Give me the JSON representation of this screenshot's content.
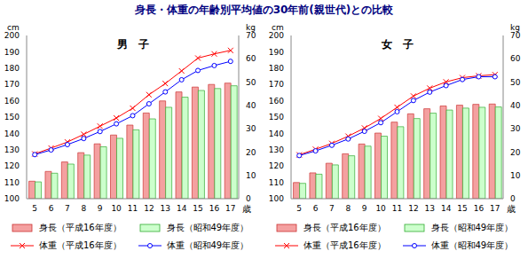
{
  "title": "身長・体重の年齢別平均値の30年前(親世代)との比較",
  "chart_data": [
    {
      "type": "bar",
      "title": "男　子",
      "categories": [
        "5",
        "6",
        "7",
        "8",
        "9",
        "10",
        "11",
        "12",
        "13",
        "14",
        "15",
        "16",
        "17"
      ],
      "xlabel": "歳",
      "ylabel": "cm",
      "y2label": "kg",
      "ylim": [
        100,
        200
      ],
      "yticks": [
        100,
        110,
        120,
        130,
        140,
        150,
        160,
        170,
        180,
        190,
        200
      ],
      "y2lim": [
        0,
        70
      ],
      "y2ticks": [
        0,
        10,
        20,
        30,
        40,
        50,
        60,
        70
      ],
      "grid": false,
      "series": [
        {
          "name": "身長（平成16年度）",
          "type": "bar",
          "color": "#f4a0a0",
          "values": [
            110.7,
            116.7,
            122.5,
            128.2,
            133.6,
            139.0,
            145.1,
            152.5,
            159.9,
            165.4,
            168.4,
            170.0,
            170.8
          ]
        },
        {
          "name": "身長（昭和49年度）",
          "type": "bar",
          "color": "#ccffcc",
          "values": [
            110.3,
            115.6,
            121.2,
            126.7,
            131.8,
            137.0,
            142.2,
            148.9,
            156.0,
            162.2,
            166.3,
            167.5,
            169.2
          ]
        },
        {
          "name": "体重（平成16年度）",
          "type": "line",
          "axis": "y2",
          "color": "#ff0000",
          "marker": "x",
          "values": [
            19.2,
            21.7,
            24.3,
            27.6,
            31.1,
            34.6,
            38.8,
            44.6,
            49.4,
            54.8,
            60.3,
            62.1,
            63.6
          ]
        },
        {
          "name": "体重（昭和49年度）",
          "type": "line",
          "axis": "y2",
          "color": "#0000ff",
          "marker": "circle",
          "values": [
            18.9,
            20.9,
            23.2,
            25.8,
            28.8,
            32.1,
            35.6,
            40.7,
            45.8,
            51.0,
            55.0,
            57.1,
            58.9
          ]
        }
      ]
    },
    {
      "type": "bar",
      "title": "女　子",
      "categories": [
        "5",
        "6",
        "7",
        "8",
        "9",
        "10",
        "11",
        "12",
        "13",
        "14",
        "15",
        "16",
        "17"
      ],
      "xlabel": "歳",
      "ylabel": "cm",
      "y2label": "kg",
      "ylim": [
        100,
        200
      ],
      "yticks": [
        100,
        110,
        120,
        130,
        140,
        150,
        160,
        170,
        180,
        190,
        200
      ],
      "y2lim": [
        0,
        70
      ],
      "y2ticks": [
        0,
        10,
        20,
        30,
        40,
        50,
        60,
        70
      ],
      "grid": false,
      "series": [
        {
          "name": "身長（平成16年度）",
          "type": "bar",
          "color": "#f4a0a0",
          "values": [
            109.9,
            115.8,
            121.7,
            127.5,
            133.5,
            140.2,
            146.9,
            152.0,
            155.1,
            156.8,
            157.3,
            157.8,
            158.0
          ]
        },
        {
          "name": "身長（昭和49年度）",
          "type": "bar",
          "color": "#ccffcc",
          "values": [
            109.4,
            115.0,
            120.7,
            126.3,
            132.2,
            138.3,
            144.1,
            149.1,
            152.4,
            154.3,
            155.5,
            156.0,
            156.2
          ]
        },
        {
          "name": "体重（平成16年度）",
          "type": "line",
          "axis": "y2",
          "color": "#ff0000",
          "marker": "x",
          "values": [
            18.8,
            21.2,
            23.7,
            26.8,
            30.3,
            34.4,
            39.2,
            44.0,
            47.4,
            50.1,
            51.9,
            52.7,
            53.2
          ]
        },
        {
          "name": "体重（昭和49年度）",
          "type": "line",
          "axis": "y2",
          "color": "#0000ff",
          "marker": "circle",
          "values": [
            18.5,
            20.5,
            22.9,
            25.6,
            28.9,
            32.6,
            37.3,
            42.1,
            45.7,
            48.5,
            51.1,
            52.3,
            52.3
          ]
        }
      ]
    }
  ]
}
